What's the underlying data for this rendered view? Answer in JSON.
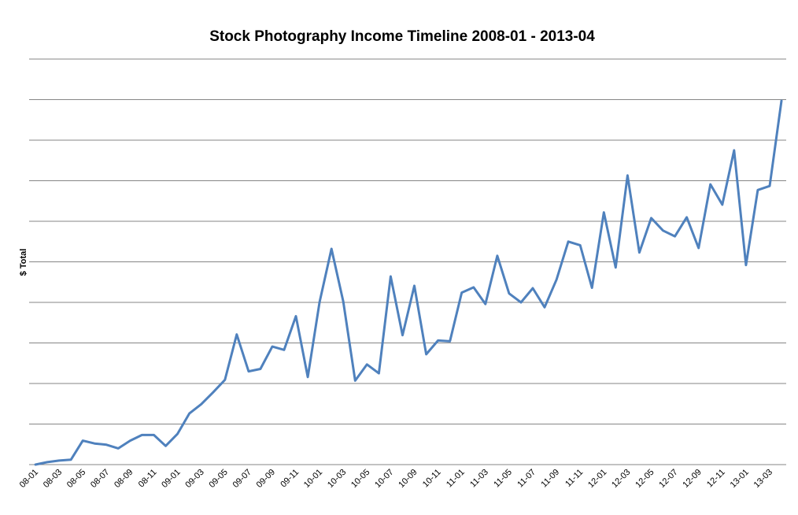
{
  "chart_data": {
    "type": "line",
    "title": "Stock Photography Income Timeline 2008-01 - 2013-04",
    "xlabel": "",
    "ylabel": "$ Total",
    "y_tick_labels_visible": false,
    "ylim": [
      0,
      100
    ],
    "grid": true,
    "legend": "none",
    "colors": {
      "line": "#4F81BD",
      "grid": "#868686"
    },
    "x": [
      "08-01",
      "08-02",
      "08-03",
      "08-04",
      "08-05",
      "08-06",
      "08-07",
      "08-08",
      "08-09",
      "08-10",
      "08-11",
      "08-12",
      "09-01",
      "09-02",
      "09-03",
      "09-04",
      "09-05",
      "09-06",
      "09-07",
      "09-08",
      "09-09",
      "09-10",
      "09-11",
      "09-12",
      "10-01",
      "10-02",
      "10-03",
      "10-04",
      "10-05",
      "10-06",
      "10-07",
      "10-08",
      "10-09",
      "10-10",
      "10-11",
      "10-12",
      "11-01",
      "11-02",
      "11-03",
      "11-04",
      "11-05",
      "11-06",
      "11-07",
      "11-08",
      "11-09",
      "11-10",
      "11-11",
      "11-12",
      "12-01",
      "12-02",
      "12-03",
      "12-04",
      "12-05",
      "12-06",
      "12-07",
      "12-08",
      "12-09",
      "12-10",
      "12-11",
      "12-12",
      "13-01",
      "13-02",
      "13-03",
      "13-04"
    ],
    "x_tick_labels": [
      "08-01",
      "08-03",
      "08-05",
      "08-07",
      "08-09",
      "08-11",
      "09-01",
      "09-03",
      "09-05",
      "09-07",
      "09-09",
      "09-11",
      "10-01",
      "10-03",
      "10-05",
      "10-07",
      "10-09",
      "10-11",
      "11-01",
      "11-03",
      "11-05",
      "11-07",
      "11-09",
      "11-11",
      "12-01",
      "12-03",
      "12-05",
      "12-07",
      "12-09",
      "12-11",
      "13-01",
      "13-03"
    ],
    "series": [
      {
        "values": [
          0,
          0.6,
          1.0,
          1.2,
          5.9,
          5.2,
          4.9,
          4.0,
          5.9,
          7.3,
          7.3,
          4.6,
          7.6,
          12.6,
          14.9,
          17.8,
          20.9,
          32.1,
          23.0,
          23.6,
          29.1,
          28.3,
          36.6,
          21.6,
          40.1,
          53.2,
          40.2,
          20.7,
          24.7,
          22.5,
          46.4,
          31.9,
          44.1,
          27.2,
          30.6,
          30.4,
          42.4,
          43.7,
          39.6,
          51.5,
          42.2,
          40.0,
          43.5,
          38.8,
          45.6,
          55.0,
          54.1,
          43.6,
          62.2,
          48.6,
          71.3,
          52.3,
          60.8,
          57.7,
          56.3,
          61.0,
          53.4,
          69.1,
          64.1,
          77.5,
          49.2,
          67.7,
          68.7,
          89.7
        ]
      }
    ]
  }
}
